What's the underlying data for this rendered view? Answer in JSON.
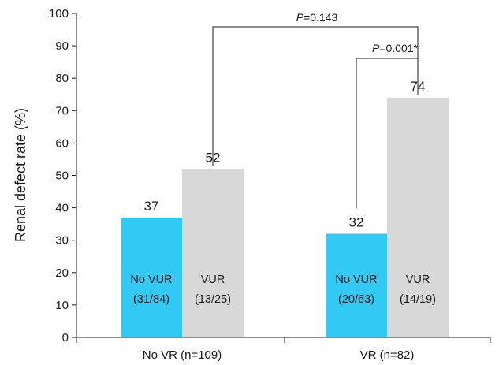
{
  "chart_data": {
    "type": "bar",
    "ylabel": "Renal defect rate (%)",
    "ylim": [
      0,
      100
    ],
    "yticks": [
      0,
      10,
      20,
      30,
      40,
      50,
      60,
      70,
      80,
      90,
      100
    ],
    "categories": [
      "No VR (n=109)",
      "VR (n=82)"
    ],
    "series": [
      {
        "name": "No VUR",
        "color": "#33c9f5",
        "values": [
          37,
          32
        ],
        "value_labels": [
          "37",
          "32"
        ],
        "counts": [
          "(31/84)",
          "(20/63)"
        ]
      },
      {
        "name": "VUR",
        "color": "#d8d8d8",
        "values": [
          52,
          74
        ],
        "value_labels": [
          "52",
          "74"
        ],
        "counts": [
          "(13/25)",
          "(14/19)"
        ]
      }
    ],
    "annotations": [
      {
        "label": "P",
        "value": "=0.143",
        "suffix": "",
        "between": [
          "No VR (n=109)|VUR",
          "VR (n=82)|VUR"
        ]
      },
      {
        "label": "P",
        "value": "=0.001",
        "suffix": "*",
        "between": [
          "VR (n=82)|No VUR",
          "VR (n=82)|VUR"
        ]
      }
    ]
  }
}
